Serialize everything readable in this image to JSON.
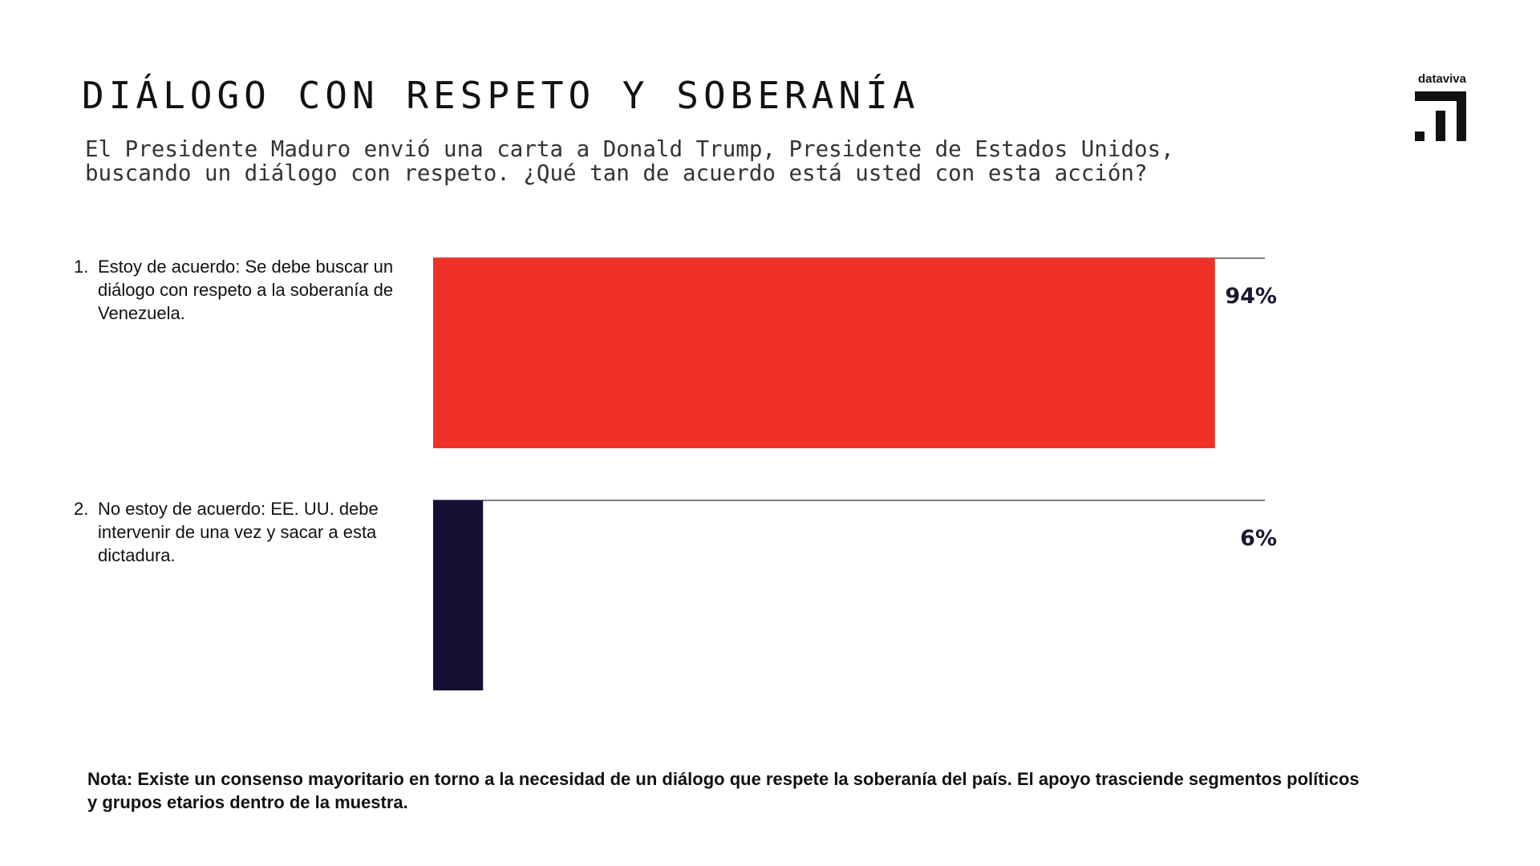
{
  "header": {
    "title": "DIÁLOGO CON RESPETO Y SOBERANÍA",
    "subtitle_line1": "El Presidente Maduro envió una carta a Donald Trump, Presidente de Estados Unidos,",
    "subtitle_line2": "buscando un diálogo con respeto. ¿Qué tan de acuerdo está usted con esta acción?"
  },
  "brand": {
    "name": "dataviva"
  },
  "chart_data": {
    "type": "bar",
    "orientation": "horizontal",
    "categories": [
      "Estoy de acuerdo: Se debe buscar un diálogo con respeto a la soberanía de Venezuela.",
      "No estoy de acuerdo: EE. UU. debe intervenir de una vez y sacar a esta dictadura."
    ],
    "category_numbers": [
      "1.",
      "2."
    ],
    "values": [
      94,
      6
    ],
    "value_labels": [
      "94%",
      "6%"
    ],
    "colors": [
      "#F03127",
      "#140F33"
    ],
    "xlim": [
      0,
      100
    ],
    "grid": false,
    "legend": "none"
  },
  "note": "Nota: Existe un consenso mayoritario en torno a la necesidad de un diálogo que respete la soberanía del país. El apoyo trasciende segmentos políticos y grupos etarios dentro de la muestra."
}
